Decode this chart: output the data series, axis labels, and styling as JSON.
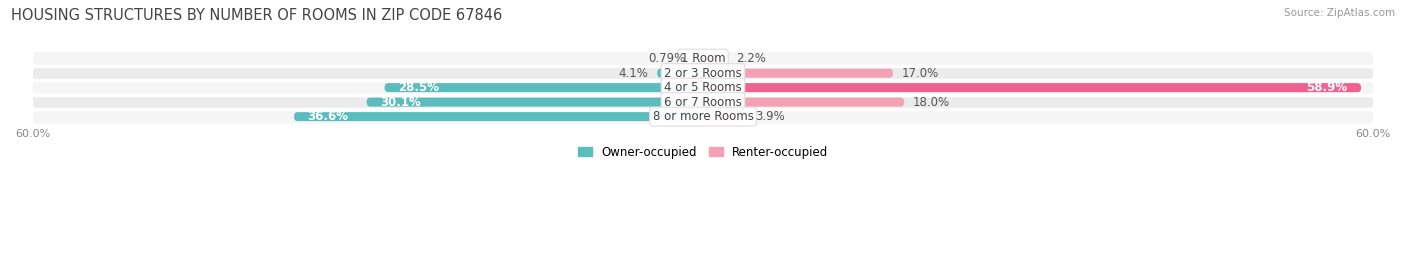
{
  "title": "HOUSING STRUCTURES BY NUMBER OF ROOMS IN ZIP CODE 67846",
  "source": "Source: ZipAtlas.com",
  "categories": [
    "1 Room",
    "2 or 3 Rooms",
    "4 or 5 Rooms",
    "6 or 7 Rooms",
    "8 or more Rooms"
  ],
  "owner_values": [
    0.79,
    4.1,
    28.5,
    30.1,
    36.6
  ],
  "renter_values": [
    2.2,
    17.0,
    58.9,
    18.0,
    3.9
  ],
  "owner_color": "#5bbcbe",
  "renter_color": "#f4a0b5",
  "renter_color_large": "#f06090",
  "row_bg_color": "#ebebeb",
  "row_bg_color2": "#f5f5f5",
  "xlim_left": -60,
  "xlim_right": 60,
  "legend_owner": "Owner-occupied",
  "legend_renter": "Renter-occupied",
  "bar_height": 0.62,
  "label_fontsize": 8.5,
  "title_fontsize": 10.5,
  "source_fontsize": 7.5,
  "axis_label_fontsize": 8,
  "background_color": "#ffffff",
  "owner_label_inside_threshold": 8,
  "renter_label_inside_threshold": 8
}
